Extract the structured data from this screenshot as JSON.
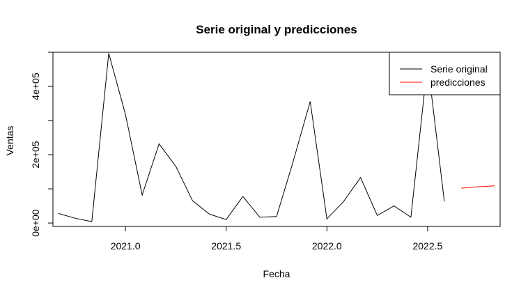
{
  "chart_data": {
    "type": "line",
    "title": "Serie original y predicciones",
    "xlabel": "Fecha",
    "ylabel": "Ventas",
    "xlim": [
      2020.64,
      2022.86
    ],
    "ylim": [
      -10000,
      500000
    ],
    "x_ticks": [
      2021.0,
      2021.5,
      2022.0,
      2022.5
    ],
    "x_tick_labels": [
      "2021.0",
      "2021.5",
      "2022.0",
      "2022.5"
    ],
    "y_ticks": [
      0,
      200000,
      400000
    ],
    "y_tick_labels": [
      "0e+00",
      "2e+05",
      "4e+05"
    ],
    "y_minor_ticks": [
      100000,
      300000,
      500000
    ],
    "legend_position": "top-right",
    "series": [
      {
        "name": "Serie original",
        "color": "#000000",
        "x": [
          2020.667,
          2020.75,
          2020.833,
          2020.917,
          2021.0,
          2021.083,
          2021.167,
          2021.25,
          2021.333,
          2021.417,
          2021.5,
          2021.583,
          2021.667,
          2021.75,
          2021.833,
          2021.917,
          2022.0,
          2022.083,
          2022.167,
          2022.25,
          2022.333,
          2022.417,
          2022.5,
          2022.583
        ],
        "values": [
          28000,
          14000,
          4000,
          497000,
          318000,
          82000,
          232000,
          166000,
          65000,
          26000,
          10000,
          78000,
          17000,
          19000,
          181000,
          356000,
          12000,
          63000,
          133000,
          22000,
          50000,
          17000,
          470000,
          63000
        ]
      },
      {
        "name": "predicciones",
        "color": "#ff0000",
        "x": [
          2022.667,
          2022.75,
          2022.833
        ],
        "values": [
          102000,
          106000,
          109000
        ]
      }
    ]
  }
}
